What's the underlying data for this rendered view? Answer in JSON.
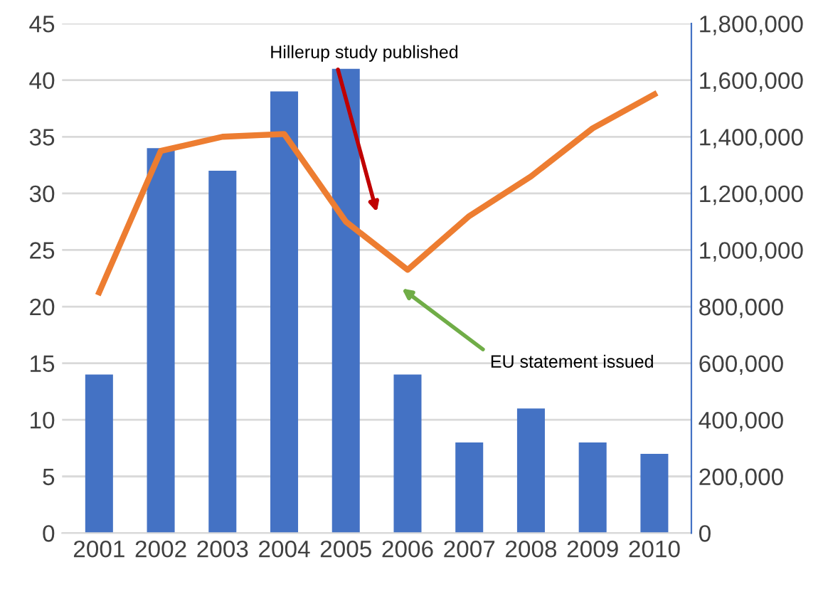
{
  "chart_data": {
    "type": "bar",
    "categories": [
      "2001",
      "2002",
      "2003",
      "2004",
      "2005",
      "2006",
      "2007",
      "2008",
      "2009",
      "2010"
    ],
    "series": [
      {
        "color": "#4472c4",
        "values": [
          14,
          34,
          32,
          39,
          41,
          14,
          8,
          11,
          8,
          7
        ]
      },
      {
        "type": "line",
        "axis": "y2",
        "color": "#ed7d31",
        "values": [
          850000,
          1350000,
          1400000,
          1410000,
          1100000,
          930000,
          1120000,
          1260000,
          1430000,
          1550000
        ]
      }
    ],
    "ylim": [
      0,
      45
    ],
    "yticks": [
      0,
      5,
      10,
      15,
      20,
      25,
      30,
      35,
      40,
      45
    ],
    "y2lim": [
      0,
      1800000
    ],
    "y2ticks": [
      0,
      {
        "value": 200000,
        "label": "200,000"
      },
      {
        "value": 400000,
        "label": "400,000"
      },
      {
        "value": 600000,
        "label": "600,000"
      },
      {
        "value": 800000,
        "label": "800,000"
      },
      {
        "value": 1000000,
        "label": "1,000,000"
      },
      {
        "value": 1200000,
        "label": "1,200,000"
      },
      {
        "value": 1400000,
        "label": "1,400,000"
      },
      {
        "value": 1600000,
        "label": "1,600,000"
      },
      {
        "value": 1800000,
        "label": "1,800,000"
      }
    ],
    "annotations": [
      "Hillerup study published",
      "EU statement issued"
    ],
    "grid": "y",
    "legend": false,
    "marker": "none",
    "line_style": "solid"
  }
}
